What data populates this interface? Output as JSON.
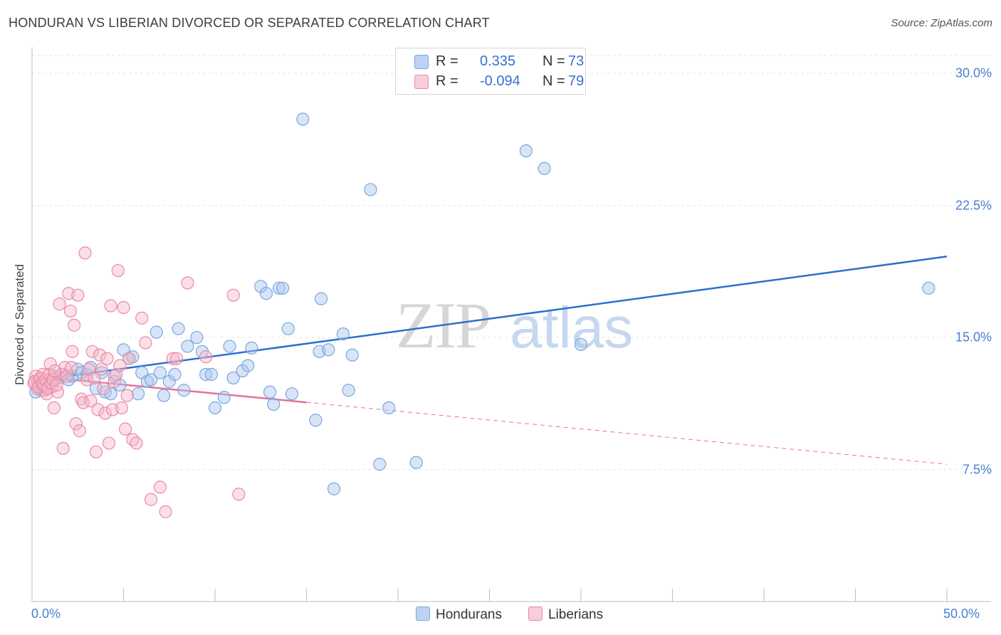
{
  "chart_data": {
    "type": "scatter",
    "title": "HONDURAN VS LIBERIAN DIVORCED OR SEPARATED CORRELATION CHART",
    "source": "Source: ZipAtlas.com",
    "ylabel": "Divorced or Separated",
    "xlabel": "",
    "xlim": [
      0,
      50
    ],
    "ylim": [
      0,
      31.5
    ],
    "x_tick_labels": [
      "0.0%",
      "50.0%"
    ],
    "y_ticks": [
      {
        "value": 7.5,
        "label": "7.5%"
      },
      {
        "value": 15.0,
        "label": "15.0%"
      },
      {
        "value": 22.5,
        "label": "22.5%"
      },
      {
        "value": 30.0,
        "label": "30.0%"
      }
    ],
    "watermark": {
      "zip": "ZIP",
      "atlas": "atlas"
    },
    "legend": [
      {
        "name": "Hondurans",
        "r_label": "R =",
        "r_value": "0.335",
        "n_label": "N =",
        "n_value": "73"
      },
      {
        "name": "Liberians",
        "r_label": "R =",
        "r_value": "-0.094",
        "n_label": "N =",
        "n_value": "79"
      }
    ],
    "series": [
      {
        "name": "Hondurans",
        "color": "#a9c6ee",
        "stroke": "#7aa6e0",
        "trend_color": "#2d6fce",
        "trend": {
          "x0": 0.5,
          "y0": 12.6,
          "x1": 50,
          "y1": 19.6,
          "solid_until": 50
        },
        "points": [
          [
            0.2,
            11.9
          ],
          [
            0.3,
            12.5
          ],
          [
            0.4,
            12.6
          ],
          [
            0.5,
            12.0
          ],
          [
            0.6,
            12.3
          ],
          [
            0.8,
            12.2
          ],
          [
            1.0,
            12.4
          ],
          [
            1.2,
            12.8
          ],
          [
            1.5,
            12.7
          ],
          [
            1.7,
            12.9
          ],
          [
            2.0,
            12.6
          ],
          [
            2.2,
            12.8
          ],
          [
            2.5,
            13.2
          ],
          [
            2.7,
            13.0
          ],
          [
            3.0,
            12.9
          ],
          [
            3.2,
            13.3
          ],
          [
            3.5,
            12.1
          ],
          [
            3.8,
            13.0
          ],
          [
            4.0,
            11.9
          ],
          [
            4.3,
            11.8
          ],
          [
            4.5,
            12.8
          ],
          [
            4.8,
            12.3
          ],
          [
            5.0,
            14.3
          ],
          [
            5.3,
            13.8
          ],
          [
            5.5,
            13.9
          ],
          [
            5.8,
            11.8
          ],
          [
            6.0,
            13.0
          ],
          [
            6.3,
            12.5
          ],
          [
            6.5,
            12.6
          ],
          [
            6.8,
            15.3
          ],
          [
            7.0,
            13.0
          ],
          [
            7.2,
            11.7
          ],
          [
            7.5,
            12.5
          ],
          [
            7.8,
            12.9
          ],
          [
            8.0,
            15.5
          ],
          [
            8.3,
            12.0
          ],
          [
            8.5,
            14.5
          ],
          [
            9.0,
            15.0
          ],
          [
            9.3,
            14.2
          ],
          [
            9.5,
            12.9
          ],
          [
            9.8,
            12.9
          ],
          [
            10.0,
            11.0
          ],
          [
            10.5,
            11.6
          ],
          [
            10.8,
            14.5
          ],
          [
            11.0,
            12.7
          ],
          [
            11.5,
            13.1
          ],
          [
            11.8,
            13.4
          ],
          [
            12.0,
            14.4
          ],
          [
            12.5,
            17.9
          ],
          [
            12.8,
            17.5
          ],
          [
            13.0,
            11.9
          ],
          [
            13.2,
            11.2
          ],
          [
            13.5,
            17.8
          ],
          [
            13.7,
            17.8
          ],
          [
            14.0,
            15.5
          ],
          [
            14.2,
            11.8
          ],
          [
            14.8,
            27.4
          ],
          [
            15.5,
            10.3
          ],
          [
            15.8,
            17.2
          ],
          [
            15.7,
            14.2
          ],
          [
            16.2,
            14.3
          ],
          [
            16.5,
            6.4
          ],
          [
            17.0,
            15.2
          ],
          [
            17.3,
            12.0
          ],
          [
            17.5,
            14.0
          ],
          [
            18.5,
            23.4
          ],
          [
            19.0,
            7.8
          ],
          [
            19.5,
            11.0
          ],
          [
            21.0,
            7.9
          ],
          [
            27.0,
            25.6
          ],
          [
            28.0,
            24.6
          ],
          [
            30.0,
            14.6
          ],
          [
            49.0,
            17.8
          ]
        ]
      },
      {
        "name": "Liberians",
        "color": "#f6b9ca",
        "stroke": "#e98aa6",
        "trend_color": "#e3739a",
        "trend": {
          "x0": 0.2,
          "y0": 12.8,
          "x1": 50,
          "y1": 7.8,
          "solid_until": 15.0
        },
        "points": [
          [
            0.1,
            12.4
          ],
          [
            0.2,
            12.8
          ],
          [
            0.3,
            12.1
          ],
          [
            0.4,
            12.6
          ],
          [
            0.5,
            12.3
          ],
          [
            0.6,
            12.9
          ],
          [
            0.7,
            12.0
          ],
          [
            0.8,
            11.8
          ],
          [
            0.9,
            12.5
          ],
          [
            1.0,
            13.5
          ],
          [
            1.1,
            12.2
          ],
          [
            1.2,
            11.0
          ],
          [
            1.3,
            12.7
          ],
          [
            1.4,
            11.9
          ],
          [
            1.5,
            16.9
          ],
          [
            1.6,
            12.9
          ],
          [
            1.7,
            8.7
          ],
          [
            1.8,
            13.3
          ],
          [
            1.9,
            12.8
          ],
          [
            2.0,
            17.5
          ],
          [
            2.1,
            16.5
          ],
          [
            2.2,
            14.2
          ],
          [
            2.3,
            15.7
          ],
          [
            2.4,
            10.1
          ],
          [
            2.5,
            17.4
          ],
          [
            2.6,
            9.7
          ],
          [
            2.7,
            11.5
          ],
          [
            2.8,
            11.3
          ],
          [
            2.9,
            19.8
          ],
          [
            3.0,
            12.6
          ],
          [
            3.1,
            13.2
          ],
          [
            3.2,
            11.4
          ],
          [
            3.3,
            14.2
          ],
          [
            3.4,
            12.7
          ],
          [
            3.5,
            8.5
          ],
          [
            3.6,
            10.9
          ],
          [
            3.7,
            14.0
          ],
          [
            3.8,
            13.2
          ],
          [
            3.9,
            12.1
          ],
          [
            4.0,
            10.7
          ],
          [
            4.1,
            13.8
          ],
          [
            4.2,
            9.0
          ],
          [
            4.3,
            16.8
          ],
          [
            4.4,
            10.9
          ],
          [
            4.5,
            12.5
          ],
          [
            4.6,
            12.9
          ],
          [
            4.7,
            18.8
          ],
          [
            4.8,
            13.4
          ],
          [
            4.9,
            11.0
          ],
          [
            5.0,
            16.7
          ],
          [
            5.1,
            9.8
          ],
          [
            5.2,
            11.7
          ],
          [
            5.3,
            13.8
          ],
          [
            5.5,
            9.2
          ],
          [
            5.7,
            9.0
          ],
          [
            6.0,
            16.1
          ],
          [
            6.2,
            14.7
          ],
          [
            6.5,
            5.8
          ],
          [
            7.0,
            6.5
          ],
          [
            7.3,
            5.1
          ],
          [
            7.7,
            13.8
          ],
          [
            7.9,
            13.8
          ],
          [
            8.5,
            18.1
          ],
          [
            9.5,
            13.9
          ],
          [
            11.0,
            17.4
          ],
          [
            11.3,
            6.1
          ],
          [
            0.15,
            12.5
          ],
          [
            0.35,
            12.2
          ],
          [
            0.45,
            12.7
          ],
          [
            0.55,
            12.4
          ],
          [
            0.65,
            12.3
          ],
          [
            0.75,
            12.6
          ],
          [
            0.85,
            12.1
          ],
          [
            0.95,
            12.9
          ],
          [
            1.05,
            12.4
          ],
          [
            1.15,
            12.6
          ],
          [
            1.25,
            13.1
          ],
          [
            1.35,
            12.3
          ],
          [
            2.15,
            13.3
          ]
        ]
      }
    ]
  }
}
